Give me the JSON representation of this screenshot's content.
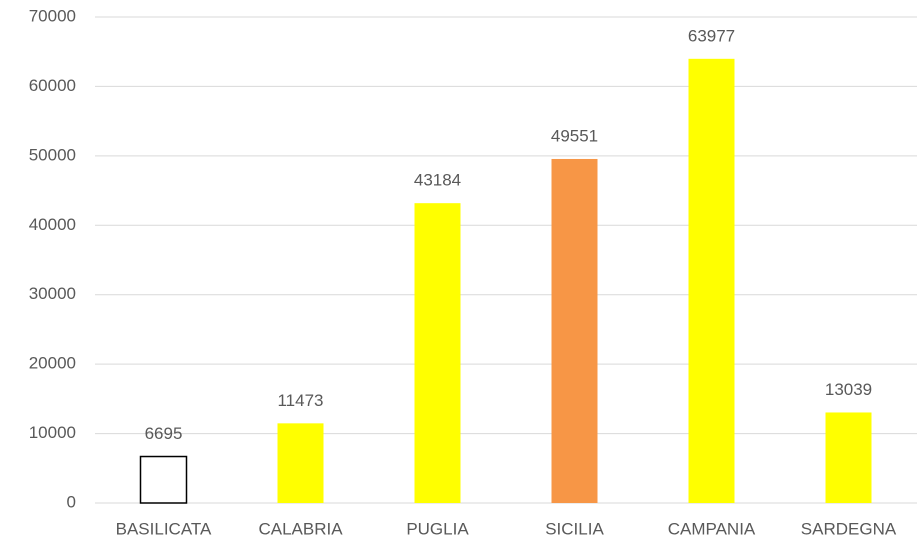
{
  "chart_data": {
    "type": "bar",
    "categories": [
      "BASILICATA",
      "CALABRIA",
      "PUGLIA",
      "SICILIA",
      "CAMPANIA",
      "SARDEGNA"
    ],
    "values": [
      6695,
      11473,
      43184,
      49551,
      63977,
      13039
    ],
    "colors": [
      "#ffffff",
      "#ffff00",
      "#ffff00",
      "#f79646",
      "#ffff00",
      "#ffff00"
    ],
    "edgecolors": [
      "#000000",
      "none",
      "none",
      "none",
      "none",
      "none"
    ],
    "ylim": [
      0,
      70000
    ],
    "yticks": [
      0,
      10000,
      20000,
      30000,
      40000,
      50000,
      60000,
      70000
    ],
    "grid": true,
    "data_labels": true
  }
}
